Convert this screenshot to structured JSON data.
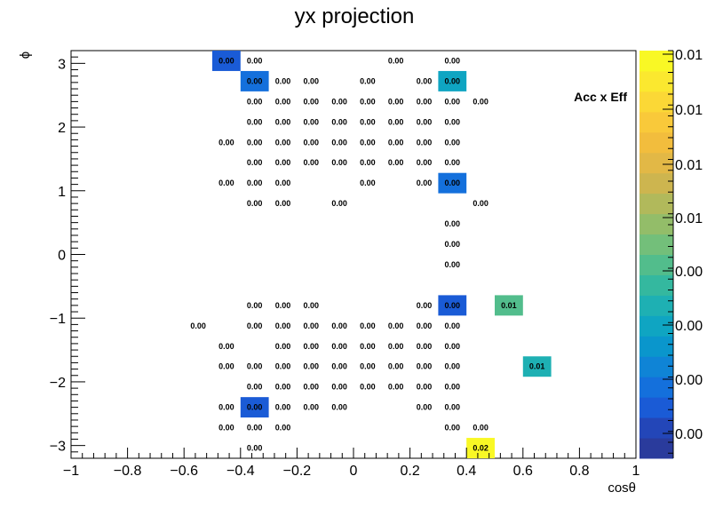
{
  "chart_data": {
    "type": "heatmap",
    "title": "yx projection",
    "xlabel": "cosθ",
    "ylabel": "ϕ",
    "xlim": [
      -1,
      1
    ],
    "ylim": [
      -3.2,
      3.2
    ],
    "x_ticks": [
      "−1",
      "−0.8",
      "−0.6",
      "−0.4",
      "−0.2",
      "0",
      "0.2",
      "0.4",
      "0.6",
      "0.8",
      "1"
    ],
    "y_ticks": [
      "−3",
      "−2",
      "−1",
      "0",
      "1",
      "2",
      "3"
    ],
    "annotation": "Acc x Eff",
    "colorbar": {
      "min": 0,
      "max": 0.02,
      "tick_labels": [
        "0.01",
        "0.01",
        "0.01",
        "0.01",
        "0.00",
        "0.00",
        "0.00",
        "0.00"
      ]
    },
    "cell_width": 0.1,
    "cell_height": 0.32,
    "cells": [
      {
        "x": -0.45,
        "y": 3.04,
        "label": "0.00",
        "v": 0.0025
      },
      {
        "x": -0.35,
        "y": 3.04,
        "label": "0.00",
        "v": 0
      },
      {
        "x": 0.15,
        "y": 3.04,
        "label": "0.00",
        "v": 0
      },
      {
        "x": 0.35,
        "y": 3.04,
        "label": "0.00",
        "v": 0
      },
      {
        "x": -0.35,
        "y": 2.72,
        "label": "0.00",
        "v": 0.0035
      },
      {
        "x": -0.25,
        "y": 2.72,
        "label": "0.00",
        "v": 0
      },
      {
        "x": -0.15,
        "y": 2.72,
        "label": "0.00",
        "v": 0
      },
      {
        "x": 0.05,
        "y": 2.72,
        "label": "0.00",
        "v": 0
      },
      {
        "x": 0.25,
        "y": 2.72,
        "label": "0.00",
        "v": 0
      },
      {
        "x": 0.35,
        "y": 2.72,
        "label": "0.00",
        "v": 0.006
      },
      {
        "x": -0.35,
        "y": 2.4,
        "label": "0.00",
        "v": 0
      },
      {
        "x": -0.25,
        "y": 2.4,
        "label": "0.00",
        "v": 0
      },
      {
        "x": -0.15,
        "y": 2.4,
        "label": "0.00",
        "v": 0
      },
      {
        "x": -0.05,
        "y": 2.4,
        "label": "0.00",
        "v": 0
      },
      {
        "x": 0.05,
        "y": 2.4,
        "label": "0.00",
        "v": 0
      },
      {
        "x": 0.15,
        "y": 2.4,
        "label": "0.00",
        "v": 0
      },
      {
        "x": 0.25,
        "y": 2.4,
        "label": "0.00",
        "v": 0
      },
      {
        "x": 0.35,
        "y": 2.4,
        "label": "0.00",
        "v": 0
      },
      {
        "x": 0.45,
        "y": 2.4,
        "label": "0.00",
        "v": 0
      },
      {
        "x": -0.35,
        "y": 2.08,
        "label": "0.00",
        "v": 0
      },
      {
        "x": -0.25,
        "y": 2.08,
        "label": "0.00",
        "v": 0
      },
      {
        "x": -0.15,
        "y": 2.08,
        "label": "0.00",
        "v": 0
      },
      {
        "x": -0.05,
        "y": 2.08,
        "label": "0.00",
        "v": 0
      },
      {
        "x": 0.05,
        "y": 2.08,
        "label": "0.00",
        "v": 0
      },
      {
        "x": 0.15,
        "y": 2.08,
        "label": "0.00",
        "v": 0
      },
      {
        "x": 0.25,
        "y": 2.08,
        "label": "0.00",
        "v": 0
      },
      {
        "x": 0.35,
        "y": 2.08,
        "label": "0.00",
        "v": 0
      },
      {
        "x": -0.45,
        "y": 1.76,
        "label": "0.00",
        "v": 0
      },
      {
        "x": -0.35,
        "y": 1.76,
        "label": "0.00",
        "v": 0
      },
      {
        "x": -0.25,
        "y": 1.76,
        "label": "0.00",
        "v": 0
      },
      {
        "x": -0.15,
        "y": 1.76,
        "label": "0.00",
        "v": 0
      },
      {
        "x": -0.05,
        "y": 1.76,
        "label": "0.00",
        "v": 0
      },
      {
        "x": 0.05,
        "y": 1.76,
        "label": "0.00",
        "v": 0
      },
      {
        "x": 0.15,
        "y": 1.76,
        "label": "0.00",
        "v": 0
      },
      {
        "x": 0.25,
        "y": 1.76,
        "label": "0.00",
        "v": 0
      },
      {
        "x": 0.35,
        "y": 1.76,
        "label": "0.00",
        "v": 0
      },
      {
        "x": -0.35,
        "y": 1.44,
        "label": "0.00",
        "v": 0
      },
      {
        "x": -0.25,
        "y": 1.44,
        "label": "0.00",
        "v": 0
      },
      {
        "x": -0.15,
        "y": 1.44,
        "label": "0.00",
        "v": 0
      },
      {
        "x": -0.05,
        "y": 1.44,
        "label": "0.00",
        "v": 0
      },
      {
        "x": 0.05,
        "y": 1.44,
        "label": "0.00",
        "v": 0
      },
      {
        "x": 0.15,
        "y": 1.44,
        "label": "0.00",
        "v": 0
      },
      {
        "x": 0.25,
        "y": 1.44,
        "label": "0.00",
        "v": 0
      },
      {
        "x": 0.35,
        "y": 1.44,
        "label": "0.00",
        "v": 0
      },
      {
        "x": -0.45,
        "y": 1.12,
        "label": "0.00",
        "v": 0
      },
      {
        "x": -0.35,
        "y": 1.12,
        "label": "0.00",
        "v": 0
      },
      {
        "x": -0.25,
        "y": 1.12,
        "label": "0.00",
        "v": 0
      },
      {
        "x": 0.05,
        "y": 1.12,
        "label": "0.00",
        "v": 0
      },
      {
        "x": 0.25,
        "y": 1.12,
        "label": "0.00",
        "v": 0
      },
      {
        "x": 0.35,
        "y": 1.12,
        "label": "0.00",
        "v": 0.0035
      },
      {
        "x": -0.35,
        "y": 0.8,
        "label": "0.00",
        "v": 0
      },
      {
        "x": -0.25,
        "y": 0.8,
        "label": "0.00",
        "v": 0
      },
      {
        "x": -0.05,
        "y": 0.8,
        "label": "0.00",
        "v": 0
      },
      {
        "x": 0.45,
        "y": 0.8,
        "label": "0.00",
        "v": 0
      },
      {
        "x": 0.35,
        "y": 0.48,
        "label": "0.00",
        "v": 0
      },
      {
        "x": 0.35,
        "y": 0.16,
        "label": "0.00",
        "v": 0
      },
      {
        "x": 0.35,
        "y": -0.16,
        "label": "0.00",
        "v": 0
      },
      {
        "x": -0.35,
        "y": -0.8,
        "label": "0.00",
        "v": 0
      },
      {
        "x": -0.25,
        "y": -0.8,
        "label": "0.00",
        "v": 0
      },
      {
        "x": -0.15,
        "y": -0.8,
        "label": "0.00",
        "v": 0
      },
      {
        "x": 0.25,
        "y": -0.8,
        "label": "0.00",
        "v": 0
      },
      {
        "x": 0.35,
        "y": -0.8,
        "label": "0.00",
        "v": 0.0025
      },
      {
        "x": 0.55,
        "y": -0.8,
        "label": "0.01",
        "v": 0.0095
      },
      {
        "x": -0.55,
        "y": -1.12,
        "label": "0.00",
        "v": 0
      },
      {
        "x": -0.35,
        "y": -1.12,
        "label": "0.00",
        "v": 0
      },
      {
        "x": -0.25,
        "y": -1.12,
        "label": "0.00",
        "v": 0
      },
      {
        "x": -0.15,
        "y": -1.12,
        "label": "0.00",
        "v": 0
      },
      {
        "x": -0.05,
        "y": -1.12,
        "label": "0.00",
        "v": 0
      },
      {
        "x": 0.05,
        "y": -1.12,
        "label": "0.00",
        "v": 0
      },
      {
        "x": 0.15,
        "y": -1.12,
        "label": "0.00",
        "v": 0
      },
      {
        "x": 0.25,
        "y": -1.12,
        "label": "0.00",
        "v": 0
      },
      {
        "x": 0.35,
        "y": -1.12,
        "label": "0.00",
        "v": 0
      },
      {
        "x": -0.45,
        "y": -1.44,
        "label": "0.00",
        "v": 0
      },
      {
        "x": -0.25,
        "y": -1.44,
        "label": "0.00",
        "v": 0
      },
      {
        "x": -0.15,
        "y": -1.44,
        "label": "0.00",
        "v": 0
      },
      {
        "x": -0.05,
        "y": -1.44,
        "label": "0.00",
        "v": 0
      },
      {
        "x": 0.05,
        "y": -1.44,
        "label": "0.00",
        "v": 0
      },
      {
        "x": 0.15,
        "y": -1.44,
        "label": "0.00",
        "v": 0
      },
      {
        "x": 0.25,
        "y": -1.44,
        "label": "0.00",
        "v": 0
      },
      {
        "x": 0.35,
        "y": -1.44,
        "label": "0.00",
        "v": 0
      },
      {
        "x": -0.45,
        "y": -1.76,
        "label": "0.00",
        "v": 0
      },
      {
        "x": -0.35,
        "y": -1.76,
        "label": "0.00",
        "v": 0
      },
      {
        "x": -0.25,
        "y": -1.76,
        "label": "0.00",
        "v": 0
      },
      {
        "x": -0.15,
        "y": -1.76,
        "label": "0.00",
        "v": 0
      },
      {
        "x": -0.05,
        "y": -1.76,
        "label": "0.00",
        "v": 0
      },
      {
        "x": 0.05,
        "y": -1.76,
        "label": "0.00",
        "v": 0
      },
      {
        "x": 0.15,
        "y": -1.76,
        "label": "0.00",
        "v": 0
      },
      {
        "x": 0.25,
        "y": -1.76,
        "label": "0.00",
        "v": 0
      },
      {
        "x": 0.35,
        "y": -1.76,
        "label": "0.00",
        "v": 0
      },
      {
        "x": 0.65,
        "y": -1.76,
        "label": "0.01",
        "v": 0.0075
      },
      {
        "x": -0.35,
        "y": -2.08,
        "label": "0.00",
        "v": 0
      },
      {
        "x": -0.25,
        "y": -2.08,
        "label": "0.00",
        "v": 0
      },
      {
        "x": -0.15,
        "y": -2.08,
        "label": "0.00",
        "v": 0
      },
      {
        "x": -0.05,
        "y": -2.08,
        "label": "0.00",
        "v": 0
      },
      {
        "x": 0.05,
        "y": -2.08,
        "label": "0.00",
        "v": 0
      },
      {
        "x": 0.15,
        "y": -2.08,
        "label": "0.00",
        "v": 0
      },
      {
        "x": 0.25,
        "y": -2.08,
        "label": "0.00",
        "v": 0
      },
      {
        "x": 0.35,
        "y": -2.08,
        "label": "0.00",
        "v": 0
      },
      {
        "x": -0.45,
        "y": -2.4,
        "label": "0.00",
        "v": 0
      },
      {
        "x": -0.35,
        "y": -2.4,
        "label": "0.00",
        "v": 0.0025
      },
      {
        "x": -0.25,
        "y": -2.4,
        "label": "0.00",
        "v": 0
      },
      {
        "x": -0.15,
        "y": -2.4,
        "label": "0.00",
        "v": 0
      },
      {
        "x": -0.05,
        "y": -2.4,
        "label": "0.00",
        "v": 0
      },
      {
        "x": 0.25,
        "y": -2.4,
        "label": "0.00",
        "v": 0
      },
      {
        "x": 0.35,
        "y": -2.4,
        "label": "0.00",
        "v": 0
      },
      {
        "x": -0.45,
        "y": -2.72,
        "label": "0.00",
        "v": 0
      },
      {
        "x": -0.35,
        "y": -2.72,
        "label": "0.00",
        "v": 0
      },
      {
        "x": -0.25,
        "y": -2.72,
        "label": "0.00",
        "v": 0
      },
      {
        "x": 0.35,
        "y": -2.72,
        "label": "0.00",
        "v": 0
      },
      {
        "x": 0.45,
        "y": -2.72,
        "label": "0.00",
        "v": 0
      },
      {
        "x": -0.35,
        "y": -3.04,
        "label": "0.00",
        "v": 0
      },
      {
        "x": 0.45,
        "y": -3.04,
        "label": "0.02",
        "v": 0.02
      }
    ]
  }
}
